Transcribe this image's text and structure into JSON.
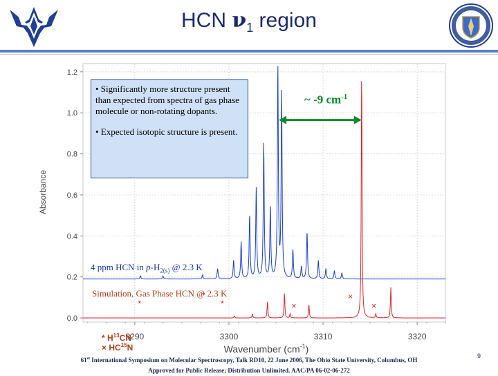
{
  "slide": {
    "title_prefix": "HCN ",
    "title_nu": "ν",
    "title_sub": "1",
    "title_suffix": " region",
    "page_number": "9"
  },
  "footer": {
    "line1_num": "61",
    "line1_ord": "st",
    "line1_rest": " International Symposium on Molecular Spectroscopy, Talk RD10, 22 June 2006, The Ohio State University, Columbus, OH",
    "line2": "Approved for Public Release; Distribution Unlimited. AAC/PA 06-02-06-272"
  },
  "notes": {
    "bullet1": "• Significantly more structure present than expected from spectra of gas phase molecule or non-rotating dopants.",
    "bullet2": "• Expected isotopic structure is present."
  },
  "annotation": {
    "shift_text": "~ -9 cm",
    "shift_sup": "-1",
    "shift_color": "#0d8a2a"
  },
  "labels": {
    "blue_pre": "4 ppm HCN in ",
    "blue_p": "p",
    "blue_mid": "-H",
    "blue_sub": "2(s)",
    "blue_post": " @ 2.3 K",
    "red": "Simulation, Gas Phase HCN @ 2.3 K"
  },
  "legend": {
    "star_item": "* H",
    "star_sup": "13",
    "star_rest": "CN",
    "cross_item": "× HC",
    "cross_sup": "15",
    "cross_rest": "N"
  },
  "chart_data": {
    "type": "line",
    "xlabel_pre": "Wavenumber (cm",
    "xlabel_sup": "-1",
    "xlabel_post": ")",
    "ylabel": "Absorbance",
    "xlim": [
      3284.5,
      3323
    ],
    "ylim": [
      -0.02,
      1.24
    ],
    "xticks": [
      3290,
      3300,
      3310,
      3320
    ],
    "yticks": [
      0.0,
      0.2,
      0.4,
      0.6,
      0.8,
      1.0,
      1.2
    ],
    "ytick_labels": [
      "0.0",
      "0.2",
      "0.4",
      "0.6",
      "0.8",
      "1.0",
      "1.2"
    ],
    "series": [
      {
        "color": "#1a3fd0",
        "baseline": 0.19,
        "peaks": [
          [
            3290.6,
            0.205
          ],
          [
            3293.0,
            0.205
          ],
          [
            3297.2,
            0.21
          ],
          [
            3298.8,
            0.24
          ],
          [
            3300.5,
            0.28
          ],
          [
            3301.3,
            0.37
          ],
          [
            3302.2,
            0.5
          ],
          [
            3302.9,
            0.63
          ],
          [
            3303.7,
            0.85
          ],
          [
            3304.4,
            0.54
          ],
          [
            3305.2,
            1.22
          ],
          [
            3305.6,
            1.1
          ],
          [
            3306.8,
            0.33
          ],
          [
            3307.7,
            0.25
          ],
          [
            3308.3,
            0.42
          ],
          [
            3309.5,
            0.28
          ],
          [
            3310.3,
            0.24
          ],
          [
            3311.2,
            0.23
          ],
          [
            3312.0,
            0.22
          ]
        ]
      },
      {
        "color": "#e0202a",
        "baseline": 0.0,
        "peaks": [
          [
            3300.6,
            0.01
          ],
          [
            3302.5,
            0.02
          ],
          [
            3304.1,
            0.08
          ],
          [
            3305.9,
            0.12
          ],
          [
            3306.5,
            0.02
          ],
          [
            3308.5,
            0.065
          ],
          [
            3314.1,
            1.2
          ],
          [
            3315.6,
            0.02
          ],
          [
            3317.2,
            0.15
          ]
        ]
      }
    ],
    "markers": [
      {
        "symbol": "*",
        "x": 3290.5,
        "y": 0.07,
        "color": "#e0202a"
      },
      {
        "symbol": "*",
        "x": 3297.3,
        "y": 0.11,
        "color": "#e0202a"
      },
      {
        "symbol": "*",
        "x": 3299.3,
        "y": 0.07,
        "color": "#e0202a"
      },
      {
        "symbol": "×",
        "x": 3306.9,
        "y": 0.06,
        "color": "#e0202a"
      },
      {
        "symbol": "×",
        "x": 3312.9,
        "y": 0.105,
        "color": "#e0202a"
      },
      {
        "symbol": "×",
        "x": 3315.4,
        "y": 0.06,
        "color": "#e0202a"
      }
    ],
    "arrow": {
      "x1": 3305.3,
      "x2": 3314.1,
      "y": 0.965
    }
  }
}
